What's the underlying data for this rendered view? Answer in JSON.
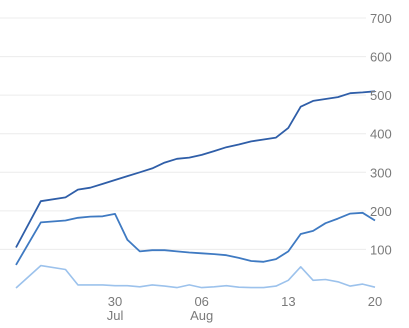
{
  "chart_data": {
    "type": "line",
    "title": "",
    "xlabel": "",
    "ylabel": "",
    "ylim": [
      0,
      700
    ],
    "y_ticks": [
      {
        "value": 100,
        "label": "100"
      },
      {
        "value": 200,
        "label": "200"
      },
      {
        "value": 300,
        "label": "300"
      },
      {
        "value": 400,
        "label": "400"
      },
      {
        "value": 500,
        "label": "500"
      },
      {
        "value": 600,
        "label": "600"
      },
      {
        "value": 700,
        "label": "700"
      }
    ],
    "x_ticks": [
      {
        "date": "Jul 30",
        "day": "30",
        "month": "Jul"
      },
      {
        "date": "Aug 06",
        "day": "06",
        "month": "Aug"
      },
      {
        "date": "Aug 13",
        "day": "13",
        "month": ""
      },
      {
        "date": "Aug 20",
        "day": "20",
        "month": ""
      }
    ],
    "x": [
      "Jul 22",
      "Jul 24",
      "Jul 26",
      "Jul 27",
      "Jul 28",
      "Jul 29",
      "Jul 30",
      "Jul 31",
      "Aug 01",
      "Aug 02",
      "Aug 03",
      "Aug 04",
      "Aug 05",
      "Aug 06",
      "Aug 07",
      "Aug 08",
      "Aug 09",
      "Aug 10",
      "Aug 11",
      "Aug 12",
      "Aug 13",
      "Aug 14",
      "Aug 15",
      "Aug 16",
      "Aug 17",
      "Aug 18",
      "Aug 19",
      "Aug 20"
    ],
    "grid": true,
    "colors": {
      "series1": "#2f5ea8",
      "series2": "#3f7ac2",
      "series3": "#9cc2ec",
      "grid": "#ececec",
      "ticks": "#7a7a7a"
    },
    "series": [
      {
        "values": [
          105,
          225,
          235,
          255,
          260,
          270,
          280,
          290,
          300,
          310,
          325,
          335,
          338,
          345,
          355,
          365,
          372,
          380,
          385,
          390,
          415,
          470,
          485,
          490,
          495,
          505,
          507,
          510
        ]
      },
      {
        "values": [
          60,
          170,
          175,
          182,
          185,
          186,
          192,
          125,
          95,
          98,
          98,
          95,
          92,
          90,
          88,
          85,
          78,
          70,
          68,
          75,
          95,
          140,
          148,
          168,
          180,
          193,
          195,
          175
        ]
      },
      {
        "values": [
          0,
          58,
          48,
          8,
          8,
          8,
          6,
          6,
          3,
          8,
          5,
          1,
          8,
          1,
          3,
          6,
          2,
          1,
          1,
          5,
          20,
          55,
          20,
          22,
          16,
          5,
          10,
          2
        ]
      }
    ]
  }
}
